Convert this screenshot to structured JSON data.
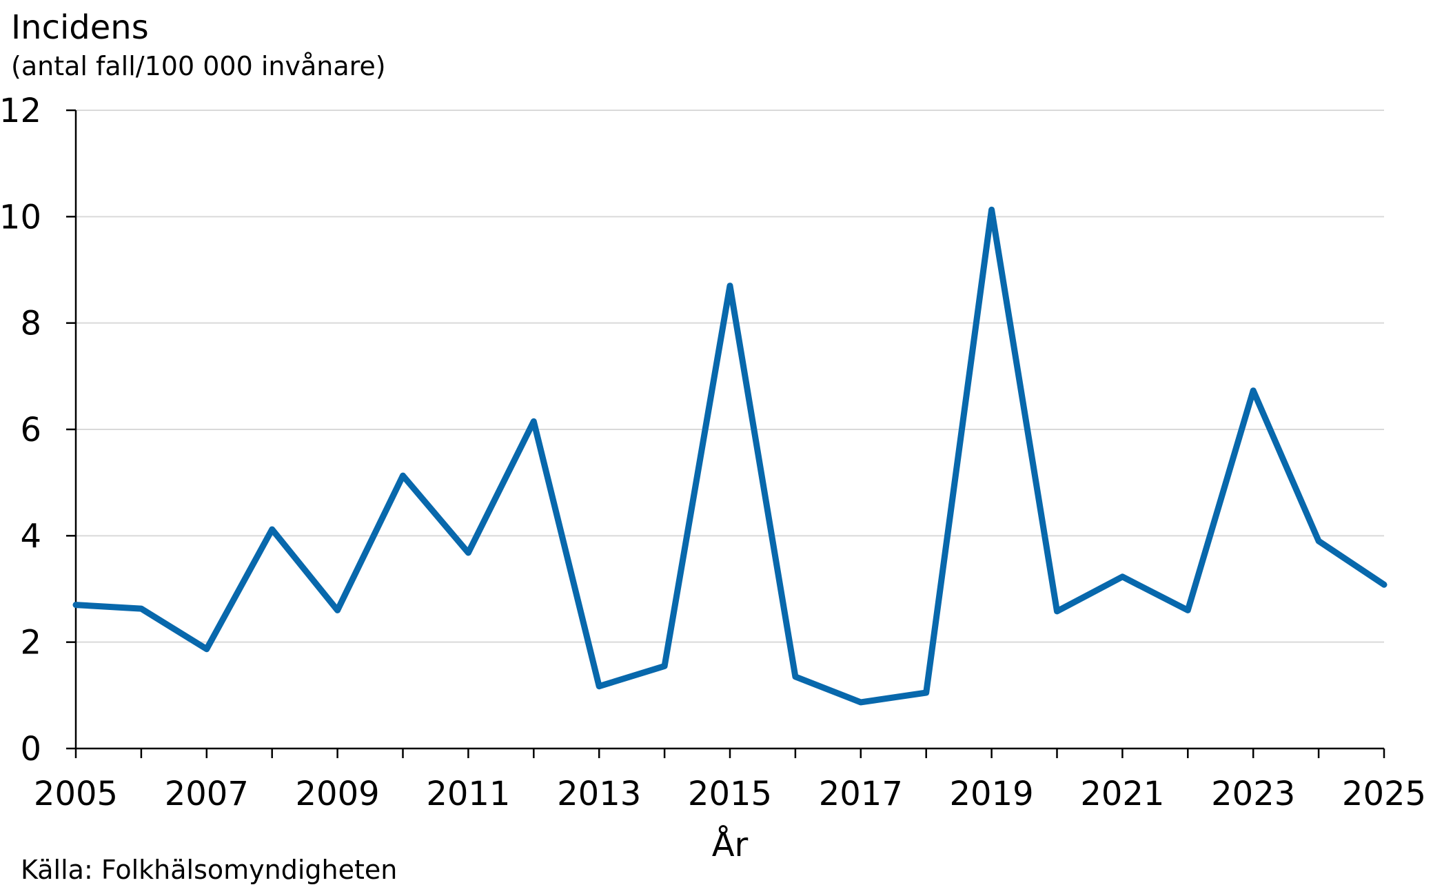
{
  "chart_data": {
    "type": "line",
    "title": "Incidens",
    "subtitle": "(antal fall/100 000 invånare)",
    "xlabel": "År",
    "ylabel": "Incidens",
    "source": "Källa: Folkhälsomyndigheten",
    "xlim": [
      2005,
      2025
    ],
    "ylim": [
      0,
      12
    ],
    "x_ticks": [
      2005,
      2007,
      2009,
      2011,
      2013,
      2015,
      2017,
      2019,
      2021,
      2023,
      2025
    ],
    "y_ticks": [
      0,
      2,
      4,
      6,
      8,
      10,
      12
    ],
    "grid": "horizontal",
    "colors": {
      "line": "#0868ac",
      "grid": "#d9d9d9",
      "axis": "#000000"
    },
    "series": [
      {
        "x": [
          2005,
          2006,
          2007,
          2008,
          2009,
          2010,
          2011,
          2012,
          2013,
          2014,
          2015,
          2016,
          2017,
          2018,
          2019,
          2020,
          2021,
          2022,
          2023,
          2024,
          2025
        ],
        "values": [
          2.7,
          2.63,
          1.87,
          4.12,
          2.6,
          5.13,
          3.68,
          6.15,
          1.17,
          1.55,
          8.7,
          1.35,
          0.87,
          1.05,
          10.13,
          2.58,
          3.23,
          2.6,
          6.73,
          3.9,
          3.08
        ]
      }
    ]
  }
}
